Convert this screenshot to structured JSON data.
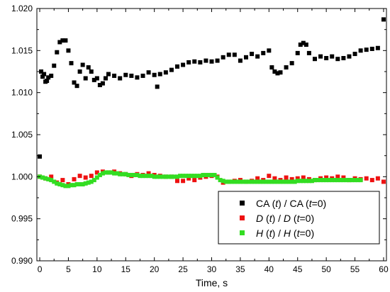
{
  "chart_data": {
    "type": "scatter",
    "title": "",
    "xlabel": "Time, s",
    "ylabel": "",
    "xlim": [
      -0.5,
      60.5
    ],
    "ylim": [
      0.99,
      1.02
    ],
    "xticks": [
      0,
      5,
      10,
      15,
      20,
      25,
      30,
      35,
      40,
      45,
      50,
      55,
      60
    ],
    "xtick_labels": [
      "0",
      "5",
      "10",
      "15",
      "20",
      "25",
      "30",
      "35",
      "40",
      "45",
      "50",
      "55",
      "60"
    ],
    "yticks": [
      0.99,
      0.995,
      1.0,
      1.005,
      1.01,
      1.015,
      1.02
    ],
    "ytick_labels": [
      "0.990",
      "0.995",
      "1.000",
      "1.005",
      "1.010",
      "1.015",
      "1.020"
    ],
    "grid": false,
    "legend_position": "bottom-right",
    "series": [
      {
        "name": "CA (t) / CA (t=0)",
        "legend_parts": [
          {
            "text": "CA (",
            "italic": false
          },
          {
            "text": "t",
            "italic": true
          },
          {
            "text": ") / CA (",
            "italic": false
          },
          {
            "text": "t",
            "italic": true
          },
          {
            "text": "=0)",
            "italic": false
          }
        ],
        "color": "#000000",
        "x": [
          0,
          0.25,
          0.5,
          0.75,
          1,
          1.25,
          1.5,
          2,
          2.5,
          3,
          3.5,
          4,
          4.5,
          5,
          5.5,
          6,
          6.5,
          7,
          7.5,
          8,
          8.5,
          9,
          9.5,
          10,
          10.5,
          11,
          11.5,
          12,
          13,
          14,
          15,
          16,
          17,
          18,
          19,
          20,
          20.5,
          21,
          22,
          23,
          24,
          25,
          26,
          27,
          28,
          29,
          30,
          31,
          32,
          33,
          34,
          35,
          36,
          37,
          38,
          39,
          40,
          40.5,
          41,
          41.5,
          42,
          43,
          44,
          45,
          45.5,
          46,
          46.5,
          47,
          48,
          49,
          50,
          51,
          52,
          53,
          54,
          55,
          56,
          57,
          58,
          59,
          60
        ],
        "y": [
          1.0024,
          1.0125,
          1.0119,
          1.0122,
          1.0113,
          1.0114,
          1.0118,
          1.012,
          1.0132,
          1.0148,
          1.016,
          1.0162,
          1.0162,
          1.015,
          1.0135,
          1.0112,
          1.0108,
          1.0125,
          1.0133,
          1.0117,
          1.013,
          1.0125,
          1.0115,
          1.0117,
          1.0109,
          1.0111,
          1.0117,
          1.0122,
          1.012,
          1.0117,
          1.0121,
          1.012,
          1.0118,
          1.012,
          1.0124,
          1.0121,
          1.0107,
          1.0122,
          1.0124,
          1.0127,
          1.0131,
          1.0133,
          1.0136,
          1.0137,
          1.0136,
          1.0138,
          1.0137,
          1.0138,
          1.0142,
          1.0145,
          1.0145,
          1.0138,
          1.0142,
          1.0146,
          1.0143,
          1.0147,
          1.015,
          1.013,
          1.0125,
          1.0123,
          1.0124,
          1.013,
          1.0135,
          1.0147,
          1.0157,
          1.0159,
          1.0157,
          1.0147,
          1.014,
          1.0143,
          1.0141,
          1.0143,
          1.014,
          1.0141,
          1.0143,
          1.0146,
          1.015,
          1.0151,
          1.0152,
          1.0153,
          1.0187
        ]
      },
      {
        "name": "D (t) / D (t=0)",
        "legend_parts": [
          {
            "text": "D",
            "italic": true
          },
          {
            "text": " (",
            "italic": false
          },
          {
            "text": "t",
            "italic": true
          },
          {
            "text": ") / ",
            "italic": false
          },
          {
            "text": "D",
            "italic": true
          },
          {
            "text": " (",
            "italic": false
          },
          {
            "text": "t",
            "italic": true
          },
          {
            "text": "=0)",
            "italic": false
          }
        ],
        "color": "#ee1111",
        "x": [
          0,
          1,
          2,
          3,
          4,
          5,
          6,
          7,
          8,
          9,
          10,
          11,
          12,
          13,
          14,
          15,
          16,
          17,
          18,
          19,
          20,
          21,
          22,
          23,
          24,
          25,
          26,
          27,
          28,
          29,
          30,
          31,
          32,
          33,
          34,
          35,
          36,
          37,
          38,
          39,
          40,
          41,
          42,
          43,
          44,
          45,
          46,
          47,
          48,
          49,
          50,
          51,
          52,
          53,
          54,
          55,
          56,
          57,
          58,
          59,
          60
        ],
        "y": [
          1.0,
          0.9998,
          1.0,
          0.9993,
          0.9996,
          0.9991,
          0.9997,
          1.0001,
          0.9999,
          1.0001,
          1.0005,
          1.0006,
          1.0005,
          1.0006,
          1.0004,
          1.0003,
          1.0001,
          1.0003,
          1.0002,
          1.0004,
          1.0002,
          1.0001,
          1.0,
          1.0,
          0.9995,
          0.9995,
          0.9998,
          0.9996,
          0.9999,
          1.0,
          1.0001,
          1.0,
          0.9993,
          0.9994,
          0.9995,
          0.9996,
          0.9994,
          0.9995,
          0.9998,
          0.9996,
          1.0001,
          0.9998,
          0.9996,
          0.9999,
          0.9997,
          0.9998,
          0.9999,
          0.9997,
          0.9996,
          0.9998,
          0.9999,
          0.9998,
          1.0,
          0.9999,
          0.9996,
          0.9998,
          0.9997,
          0.9998,
          0.9996,
          0.9998,
          0.9994
        ]
      },
      {
        "name": "H (t) / H (t=0)",
        "legend_parts": [
          {
            "text": "H",
            "italic": true
          },
          {
            "text": " (",
            "italic": false
          },
          {
            "text": "t",
            "italic": true
          },
          {
            "text": ") / ",
            "italic": false
          },
          {
            "text": "H",
            "italic": true
          },
          {
            "text": " (",
            "italic": false
          },
          {
            "text": "t",
            "italic": true
          },
          {
            "text": "=0)",
            "italic": false
          }
        ],
        "color": "#33dd22",
        "x": [
          0,
          0.5,
          1,
          1.5,
          2,
          2.5,
          3,
          3.5,
          4,
          4.5,
          5,
          5.5,
          6,
          6.5,
          7,
          7.5,
          8,
          8.5,
          9,
          9.5,
          10,
          10.5,
          11,
          11.5,
          12,
          12.5,
          13,
          13.5,
          14,
          14.5,
          15,
          15.5,
          16,
          16.5,
          17,
          17.5,
          18,
          18.5,
          19,
          19.5,
          20,
          20.5,
          21,
          21.5,
          22,
          22.5,
          23,
          23.5,
          24,
          24.5,
          25,
          25.5,
          26,
          26.5,
          27,
          27.5,
          28,
          28.5,
          29,
          29.5,
          30,
          30.5,
          31,
          31.5,
          32,
          32.5,
          33,
          33.5,
          34,
          34.5,
          35,
          35.5,
          36,
          36.5,
          37,
          37.5,
          38,
          38.5,
          39,
          39.5,
          40,
          40.5,
          41,
          41.5,
          42,
          42.5,
          43,
          43.5,
          44,
          44.5,
          45,
          45.5,
          46,
          46.5,
          47,
          47.5,
          48,
          48.5,
          49,
          49.5,
          50,
          50.5,
          51,
          51.5,
          52,
          52.5,
          53,
          53.5,
          54,
          54.5,
          55,
          55.5,
          56
        ],
        "y": [
          1.0,
          0.9999,
          0.9998,
          0.9997,
          0.9996,
          0.9994,
          0.9992,
          0.9991,
          0.999,
          0.9989,
          0.9989,
          0.999,
          0.999,
          0.9991,
          0.9991,
          0.9991,
          0.9992,
          0.9993,
          0.9994,
          0.9996,
          0.9999,
          1.0002,
          1.0004,
          1.0005,
          1.0005,
          1.0005,
          1.0004,
          1.0004,
          1.0003,
          1.0003,
          1.0003,
          1.0002,
          1.0002,
          1.0002,
          1.0002,
          1.0001,
          1.0001,
          1.0001,
          1.0001,
          1.0001,
          1.0,
          1.0,
          1.0,
          1.0,
          1.0,
          1.0,
          1.0,
          1.0,
          1.0,
          1.0001,
          1.0001,
          1.0001,
          1.0001,
          1.0001,
          1.0001,
          1.0001,
          1.0001,
          1.0002,
          1.0002,
          1.0002,
          1.0002,
          1.0002,
          0.9999,
          0.9996,
          0.9995,
          0.9994,
          0.9994,
          0.9994,
          0.9994,
          0.9994,
          0.9994,
          0.9994,
          0.9994,
          0.9994,
          0.9994,
          0.9994,
          0.9994,
          0.9994,
          0.9994,
          0.9994,
          0.9994,
          0.9994,
          0.9994,
          0.9994,
          0.9994,
          0.9994,
          0.9994,
          0.9994,
          0.9994,
          0.9994,
          0.9995,
          0.9995,
          0.9995,
          0.9995,
          0.9995,
          0.9995,
          0.9996,
          0.9996,
          0.9996,
          0.9996,
          0.9996,
          0.9996,
          0.9996,
          0.9996,
          0.9996,
          0.9996,
          0.9996,
          0.9996,
          0.9996,
          0.9996,
          0.9996,
          0.9996,
          0.9996
        ]
      }
    ]
  }
}
